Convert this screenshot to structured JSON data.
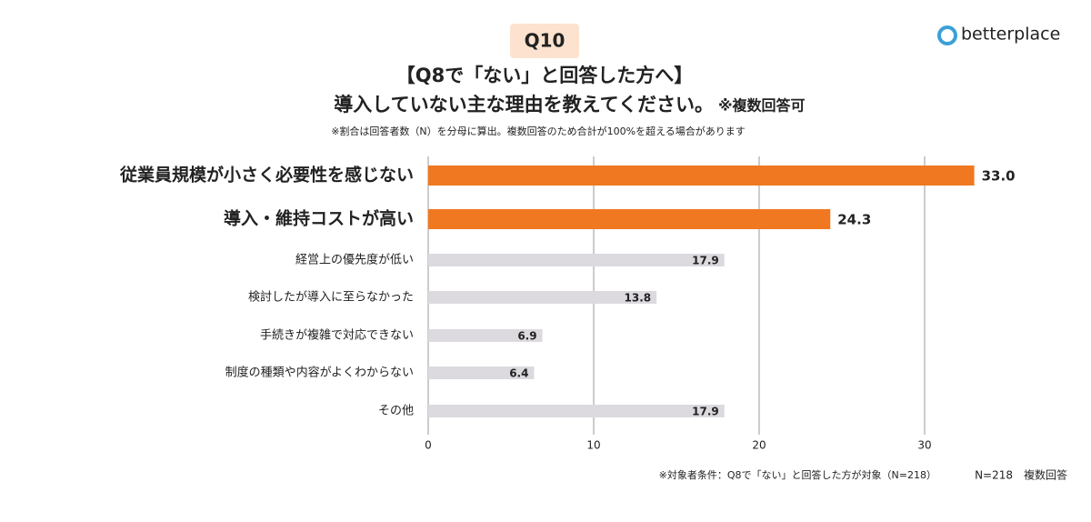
{
  "logo": "betterplace",
  "chart_data": {
    "type": "hbar",
    "badge": "Q10",
    "title": "【Q8で「ない」と回答した方へ】",
    "subtitle": "導入していない主な理由を教えてください。",
    "subtitle_note": "※複数回答可",
    "note": "※割合は回答者数（N）を分母に算出。複数回答のため合計が100%を超える場合があります",
    "categories": [
      "従業員規模が小さく必要性を感じない",
      "導入・維持コストが高い",
      "経営上の優先度が低い",
      "検討したが導入に至らなかった",
      "手続きが複雑で対応できない",
      "制度の種類や内容がよくわからない",
      "その他"
    ],
    "values": [
      33.0,
      24.3,
      17.9,
      13.8,
      6.9,
      6.4,
      17.9
    ],
    "value_labels": [
      "33.0",
      "24.3",
      "17.9",
      "13.8",
      "6.9",
      "6.4",
      "17.9"
    ],
    "colors": [
      "#f07820",
      "#f07820",
      "#dcdadf",
      "#dcdadf",
      "#dcdadf",
      "#dcdadf",
      "#dcdadf"
    ],
    "highlight": [
      true,
      true,
      false,
      false,
      false,
      false,
      false
    ],
    "xlim": [
      0,
      33
    ],
    "xticks": [
      0,
      10,
      20,
      30
    ],
    "grid": true,
    "footnote": "※対象者条件：Q8で「ない」と回答した方が対象（N=218）",
    "sample": "N=218　複数回答"
  }
}
